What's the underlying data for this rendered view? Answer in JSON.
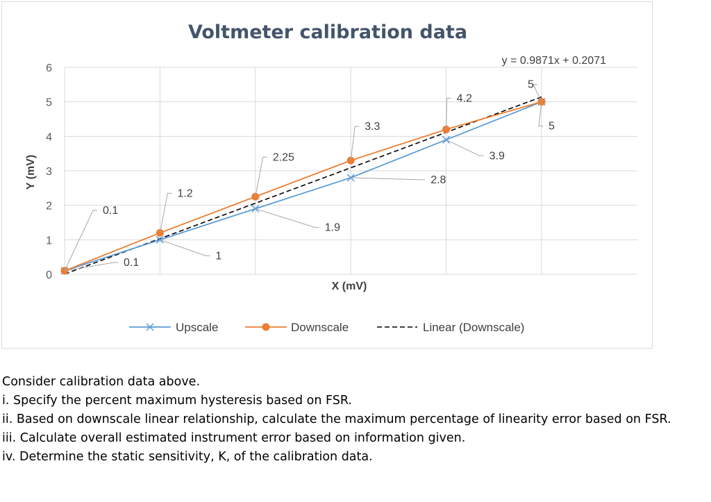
{
  "chart_data": {
    "type": "line",
    "title": "Voltmeter calibration data",
    "xlabel": "X (mV)",
    "ylabel": "Y (mV)",
    "ylim": [
      0,
      6
    ],
    "yticks": [
      "0",
      "1",
      "2",
      "3",
      "4",
      "5",
      "6"
    ],
    "grid": true,
    "legend_placement": "bottom",
    "series": [
      {
        "name": "Upscale",
        "color": "#5b9bd5",
        "marker": "x",
        "values": [
          0.1,
          1,
          1.9,
          2.8,
          3.9,
          5
        ],
        "labels": [
          "0.1",
          "1",
          "1.9",
          "2.8",
          "3.9",
          "5"
        ]
      },
      {
        "name": "Downscale",
        "color": "#ed7d31",
        "marker": "circle",
        "values": [
          0.1,
          1.2,
          2.25,
          3.3,
          4.2,
          5
        ],
        "labels": [
          "0.1",
          "1.2",
          "2.25",
          "3.3",
          "4.2",
          "5"
        ]
      }
    ],
    "trendline": {
      "name": "Linear (Downscale)",
      "color": "#000000",
      "style": "dashed",
      "slope": 0.9871,
      "intercept": 0.2071,
      "equation": "y = 0.9871x + 0.2071"
    }
  },
  "question": {
    "intro": "Consider calibration data above.",
    "items": [
      "i.  Specify the percent maximum hysteresis based on FSR.",
      "ii. Based on downscale linear relationship, calculate the maximum percentage of linearity error based on FSR.",
      "iii. Calculate overall estimated instrument error based on information given.",
      "iv. Determine the static sensitivity, K, of the calibration data."
    ]
  }
}
